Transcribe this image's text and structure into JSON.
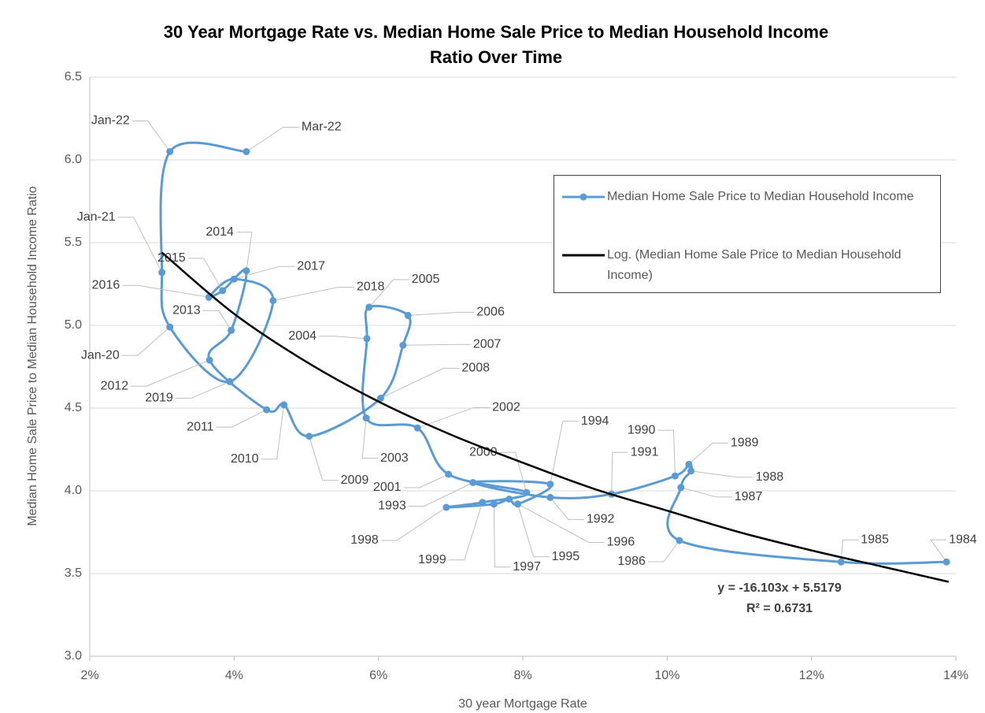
{
  "chart_data": {
    "type": "scatter",
    "title": [
      "30 Year Mortgage Rate vs. Median Home Sale Price to Median Household Income",
      "Ratio Over Time"
    ],
    "x_label": "30 year Mortgage Rate",
    "y_label": "Median Home Sale Price to Median Household Income Ratio",
    "xlim": [
      2,
      14
    ],
    "ylim": [
      3.0,
      6.5
    ],
    "xticks": [
      {
        "value": 2,
        "label": "2%"
      },
      {
        "value": 4,
        "label": "4%"
      },
      {
        "value": 6,
        "label": "6%"
      },
      {
        "value": 8,
        "label": "8%"
      },
      {
        "value": 10,
        "label": "10%"
      },
      {
        "value": 12,
        "label": "12%"
      },
      {
        "value": 14,
        "label": "14%"
      }
    ],
    "yticks": [
      {
        "value": 3,
        "label": "3.0"
      },
      3.5,
      {
        "value": 4,
        "label": "4.0"
      },
      4.5,
      {
        "value": 5,
        "label": "5.0"
      },
      5.5,
      {
        "value": 6,
        "label": "6.0"
      },
      6.5
    ],
    "grid": true,
    "series": [
      {
        "name": "Median Home Sale Price to Median Household Income",
        "color": "#5b9bd5",
        "smooth": true,
        "labels": [
          "1984",
          "1985",
          "1986",
          "1987",
          "1988",
          "1989",
          "1990",
          "1991",
          "1992",
          "1993",
          "1994",
          "1995",
          "1996",
          "1997",
          "1998",
          "1999",
          "2000",
          "2001",
          "2002",
          "2003",
          "2004",
          "2005",
          "2006",
          "2007",
          "2008",
          "2009",
          "2010",
          "2011",
          "2012",
          "2013",
          "2014",
          "2015",
          "2016",
          "2017",
          "2018",
          "2019",
          "Jan-20",
          "Jan-21",
          "Jan-22",
          "Mar-22"
        ],
        "x": [
          13.87,
          12.41,
          10.17,
          10.19,
          10.33,
          10.3,
          10.11,
          9.23,
          8.38,
          7.31,
          8.38,
          7.93,
          7.81,
          7.6,
          6.94,
          7.44,
          8.05,
          6.97,
          6.54,
          5.83,
          5.84,
          5.87,
          6.41,
          6.34,
          6.03,
          5.04,
          4.69,
          4.45,
          3.66,
          3.96,
          4.17,
          3.84,
          3.65,
          4.0,
          4.54,
          3.94,
          3.11,
          3.0,
          3.11,
          4.17
        ],
        "values": [
          3.57,
          3.57,
          3.7,
          4.02,
          4.12,
          4.16,
          4.09,
          3.98,
          3.96,
          4.05,
          4.04,
          3.92,
          3.95,
          3.92,
          3.9,
          3.93,
          3.99,
          4.1,
          4.38,
          4.44,
          4.92,
          5.11,
          5.06,
          4.88,
          4.56,
          4.33,
          4.52,
          4.49,
          4.79,
          4.97,
          5.33,
          5.21,
          5.17,
          5.28,
          5.15,
          4.66,
          4.99,
          5.32,
          6.05,
          6.05
        ]
      },
      {
        "name": "Log. (Median Home Sale Price to Median Household Income)",
        "color": "#000000",
        "smooth": true,
        "trendline": true,
        "x": [
          3,
          4,
          5,
          6,
          7,
          8,
          9,
          10,
          11,
          12,
          13,
          13.9
        ],
        "values": [
          5.44,
          5.07,
          4.78,
          4.54,
          4.34,
          4.17,
          4.01,
          3.88,
          3.75,
          3.64,
          3.54,
          3.45
        ]
      }
    ],
    "annotations": [
      "y = -16.103x + 5.5179",
      "R² = 0.6731"
    ]
  }
}
